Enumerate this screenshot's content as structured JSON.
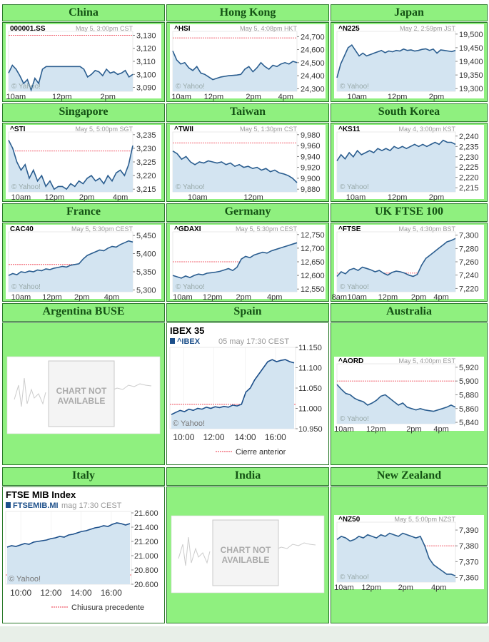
{
  "charts": [
    {
      "region": "China",
      "symbol": "000001.SS",
      "timestamp": "May 5, 3:00pm CST",
      "type": "line",
      "ylim": [
        3087,
        3133
      ],
      "yticks": [
        "3,130",
        "3,120",
        "3,110",
        "3,100",
        "3,090"
      ],
      "ytick_values": [
        3130,
        3120,
        3110,
        3100,
        3090
      ],
      "xticks": [
        "10am",
        "12pm",
        "2pm"
      ],
      "xtick_frac": [
        0.06,
        0.43,
        0.8
      ],
      "prev_close": 3130,
      "values": [
        3101,
        3107,
        3104,
        3099,
        3093,
        3096,
        3088,
        3097,
        3093,
        3104,
        3106,
        3106,
        3106,
        3106,
        3106,
        3106,
        3106,
        3106,
        3106,
        3106,
        3104,
        3098,
        3100,
        3103,
        3102,
        3099,
        3104,
        3101,
        3102,
        3100,
        3101,
        3103,
        3098,
        3100
      ],
      "break_after": 10,
      "credit": "© Yahoo!"
    },
    {
      "region": "Hong Kong",
      "symbol": "^HSI",
      "timestamp": "May 5, 4:08pm HKT",
      "type": "line",
      "ylim": [
        24280,
        24740
      ],
      "yticks": [
        "24,700",
        "24,600",
        "24,500",
        "24,400",
        "24,300"
      ],
      "ytick_values": [
        24700,
        24600,
        24500,
        24400,
        24300
      ],
      "xticks": [
        "10am",
        "12pm",
        "2pm",
        "4pm"
      ],
      "xtick_frac": [
        0.07,
        0.33,
        0.65,
        0.91
      ],
      "prev_close": 24690,
      "values": [
        24590,
        24520,
        24490,
        24500,
        24460,
        24440,
        24470,
        24420,
        24410,
        24390,
        24370,
        24380,
        24390,
        24395,
        24400,
        24402,
        24405,
        24410,
        24450,
        24470,
        24430,
        24460,
        24500,
        24470,
        24450,
        24480,
        24470,
        24490,
        24500,
        24490,
        24510,
        24500
      ],
      "break_after": 12,
      "credit": "© Yahoo!"
    },
    {
      "region": "Japan",
      "symbol": "^N225",
      "timestamp": "May 2, 2:59pm JST",
      "type": "line",
      "ylim": [
        19290,
        19510
      ],
      "yticks": [
        "19,500",
        "19,450",
        "19,400",
        "19,350",
        "19,300"
      ],
      "ytick_values": [
        19500,
        19450,
        19400,
        19350,
        19300
      ],
      "xticks": [
        "10am",
        "12pm",
        "2pm"
      ],
      "xtick_frac": [
        0.17,
        0.51,
        0.84
      ],
      "prev_close": 19300,
      "values": [
        19340,
        19390,
        19420,
        19450,
        19460,
        19440,
        19420,
        19430,
        19420,
        19425,
        19430,
        19435,
        19440,
        19432,
        19438,
        19435,
        19440,
        19438,
        19445,
        19440,
        19442,
        19438,
        19440,
        19444,
        19446,
        19440,
        19445,
        19430,
        19442,
        19440,
        19438,
        19436,
        19440
      ],
      "break_after": 8,
      "credit": "© Yahoo!"
    },
    {
      "region": "Singapore",
      "symbol": "^STI",
      "timestamp": "May 5, 5:00pm SGT",
      "type": "line",
      "ylim": [
        3214,
        3236
      ],
      "yticks": [
        "3,235",
        "3,230",
        "3,225",
        "3,220",
        "3,215"
      ],
      "ytick_values": [
        3235,
        3230,
        3225,
        3220,
        3215
      ],
      "xticks": [
        "10am",
        "12pm",
        "2pm",
        "4pm"
      ],
      "xtick_frac": [
        0.1,
        0.37,
        0.63,
        0.9
      ],
      "prev_close": 3229,
      "values": [
        3233,
        3230,
        3225,
        3222,
        3224,
        3219,
        3222,
        3218,
        3220,
        3216,
        3218,
        3215,
        3216,
        3216,
        3215,
        3217,
        3216,
        3218,
        3217,
        3219,
        3220,
        3218,
        3219,
        3217,
        3220,
        3218,
        3221,
        3222,
        3220,
        3224,
        3231
      ],
      "break_after": 12,
      "credit": "© Yahoo!"
    },
    {
      "region": "Taiwan",
      "symbol": "^TWII",
      "timestamp": "May 5, 1:30pm CST",
      "type": "line",
      "ylim": [
        9875,
        9985
      ],
      "yticks": [
        "9,980",
        "9,960",
        "9,940",
        "9,920",
        "9,900",
        "9,880"
      ],
      "ytick_values": [
        9980,
        9960,
        9940,
        9920,
        9900,
        9880
      ],
      "xticks": [
        "10am",
        "12pm"
      ],
      "xtick_frac": [
        0.2,
        0.65
      ],
      "prev_close": 9965,
      "values": [
        9950,
        9945,
        9935,
        9940,
        9930,
        9925,
        9930,
        9928,
        9932,
        9930,
        9928,
        9930,
        9925,
        9928,
        9922,
        9925,
        9920,
        9922,
        9918,
        9920,
        9915,
        9918,
        9912,
        9915,
        9910,
        9908,
        9905,
        9900,
        9892
      ],
      "break_after": null,
      "credit": "© Yahoo!"
    },
    {
      "region": "South Korea",
      "symbol": "^KS11",
      "timestamp": "May 4, 3:00pm KST",
      "type": "line",
      "ylim": [
        2213,
        2242
      ],
      "yticks": [
        "2,240",
        "2,235",
        "2,230",
        "2,225",
        "2,220",
        "2,215"
      ],
      "ytick_values": [
        2240,
        2235,
        2230,
        2225,
        2220,
        2215
      ],
      "xticks": [
        "10am",
        "12pm",
        "2pm"
      ],
      "xtick_frac": [
        0.16,
        0.51,
        0.84
      ],
      "prev_close": 2219,
      "values": [
        2228,
        2231,
        2229,
        2232,
        2230,
        2233,
        2231,
        2232,
        2233,
        2232,
        2234,
        2233,
        2234,
        2233,
        2235,
        2234,
        2235,
        2234,
        2235,
        2236,
        2235,
        2236,
        2235,
        2236,
        2237,
        2236,
        2238,
        2237,
        2237,
        2236
      ],
      "break_after": null,
      "credit": "© Yahoo!"
    },
    {
      "region": "France",
      "symbol": "CAC40",
      "timestamp": "May 5, 5:30pm CEST",
      "type": "line",
      "ylim": [
        5295,
        5460
      ],
      "yticks": [
        "5,450",
        "5,400",
        "5,350",
        "5,300"
      ],
      "ytick_values": [
        5450,
        5400,
        5350,
        5300
      ],
      "xticks": [
        "10am",
        "12pm",
        "2pm",
        "4pm"
      ],
      "xtick_frac": [
        0.1,
        0.35,
        0.59,
        0.83
      ],
      "prev_close": 5370,
      "values": [
        5340,
        5345,
        5342,
        5350,
        5348,
        5352,
        5350,
        5355,
        5353,
        5358,
        5356,
        5360,
        5362,
        5365,
        5363,
        5368,
        5370,
        5372,
        5385,
        5395,
        5400,
        5405,
        5410,
        5408,
        5415,
        5420,
        5418,
        5425,
        5430,
        5435,
        5432
      ],
      "break_after": null,
      "credit": "© Yahoo!"
    },
    {
      "region": "Germany",
      "symbol": "^GDAXI",
      "timestamp": "May 5, 5:30pm CEST",
      "type": "line",
      "ylim": [
        12540,
        12760
      ],
      "yticks": [
        "12,750",
        "12,700",
        "12,650",
        "12,600",
        "12,550"
      ],
      "ytick_values": [
        12750,
        12700,
        12650,
        12600,
        12550
      ],
      "xticks": [
        "10am",
        "12pm",
        "2pm",
        "4pm"
      ],
      "xtick_frac": [
        0.08,
        0.32,
        0.57,
        0.82
      ],
      "prev_close": 12650,
      "values": [
        12600,
        12595,
        12590,
        12598,
        12592,
        12600,
        12605,
        12602,
        12608,
        12610,
        12612,
        12615,
        12620,
        12625,
        12618,
        12630,
        12660,
        12670,
        12665,
        12675,
        12680,
        12685,
        12682,
        12690,
        12695,
        12700,
        12705,
        12710,
        12715,
        12720
      ],
      "break_after": null,
      "credit": "© Yahoo!"
    },
    {
      "region": "UK FTSE 100",
      "symbol": "^FTSE",
      "timestamp": "May 5, 4:30pm BST",
      "type": "line",
      "ylim": [
        7215,
        7305
      ],
      "yticks": [
        "7,300",
        "7,280",
        "7,260",
        "7,240",
        "7,220"
      ],
      "ytick_values": [
        7300,
        7280,
        7260,
        7240,
        7220
      ],
      "xticks": [
        "8am",
        "10am",
        "12pm",
        "2pm",
        "4pm"
      ],
      "xtick_frac": [
        0.02,
        0.17,
        0.43,
        0.69,
        0.88
      ],
      "prev_close": 7243,
      "values": [
        7238,
        7245,
        7242,
        7248,
        7250,
        7247,
        7252,
        7250,
        7248,
        7245,
        7247,
        7243,
        7240,
        7244,
        7246,
        7245,
        7243,
        7240,
        7238,
        7241,
        7255,
        7265,
        7270,
        7275,
        7280,
        7285,
        7290,
        7292,
        7295
      ],
      "break_after": null,
      "credit": "© Yahoo!"
    },
    {
      "region": "Australia",
      "symbol": "^AORD",
      "timestamp": "May 5, 4:00pm EST",
      "type": "line",
      "ylim": [
        5838,
        5925
      ],
      "yticks": [
        "5,920",
        "5,900",
        "5,880",
        "5,860",
        "5,840"
      ],
      "ytick_values": [
        5920,
        5900,
        5880,
        5860,
        5840
      ],
      "xticks": [
        "10am",
        "12pm",
        "2pm",
        "4pm"
      ],
      "xtick_frac": [
        0.06,
        0.33,
        0.65,
        0.88
      ],
      "prev_close": 5900,
      "values": [
        5895,
        5888,
        5882,
        5880,
        5875,
        5872,
        5870,
        5865,
        5868,
        5872,
        5878,
        5880,
        5875,
        5870,
        5865,
        5868,
        5862,
        5860,
        5858,
        5860,
        5858,
        5857,
        5856,
        5858,
        5860,
        5862,
        5865,
        5862
      ],
      "break_after": null,
      "credit": "© Yahoo!"
    },
    {
      "region": "New Zealand",
      "symbol": "^NZ50",
      "timestamp": "May 5, 5:00pm NZST",
      "type": "line",
      "ylim": [
        7357,
        7395
      ],
      "yticks": [
        "7,390",
        "7,380",
        "7,370",
        "7,360"
      ],
      "ytick_values": [
        7390,
        7380,
        7370,
        7360
      ],
      "xticks": [
        "10am",
        "12pm",
        "2pm",
        "4pm"
      ],
      "xtick_frac": [
        0.06,
        0.29,
        0.58,
        0.86
      ],
      "prev_close": 7380,
      "values": [
        7384,
        7386,
        7385,
        7383,
        7384,
        7386,
        7385,
        7387,
        7386,
        7385,
        7387,
        7386,
        7388,
        7387,
        7386,
        7388,
        7387,
        7386,
        7385,
        7386,
        7380,
        7372,
        7368,
        7366,
        7364,
        7362,
        7362,
        7361
      ],
      "break_after": null,
      "credit": "© Yahoo!"
    }
  ],
  "big_charts": [
    {
      "region": "Spain",
      "title": "IBEX 35",
      "symbol": "^IBEX",
      "timestamp": "05 may 17:30 CEST",
      "type": "line",
      "ylim": [
        10950,
        11150
      ],
      "yticks": [
        "11.150",
        "11.100",
        "11.050",
        "11.000",
        "10.950"
      ],
      "ytick_values": [
        11150,
        11100,
        11050,
        11000,
        10950
      ],
      "xticks": [
        "10:00",
        "12:00",
        "14:00",
        "16:00"
      ],
      "xtick_frac": [
        0.11,
        0.35,
        0.6,
        0.84
      ],
      "prev_close": 11010,
      "values": [
        10985,
        10990,
        10995,
        10992,
        10998,
        10995,
        11000,
        10998,
        11003,
        11000,
        11004,
        11002,
        11005,
        11003,
        11008,
        11006,
        11010,
        11040,
        11050,
        11070,
        11085,
        11100,
        11115,
        11120,
        11115,
        11118,
        11120,
        11115,
        11112
      ],
      "legend": "Cierre anterior",
      "credit": "© Yahoo!"
    },
    {
      "region": "Italy",
      "title": "FTSE MIB Index",
      "symbol": "FTSEMIB.MI",
      "timestamp": "mag 17:30 CEST",
      "type": "line",
      "ylim": [
        20600,
        21620
      ],
      "yticks": [
        "21.600",
        "21.400",
        "21.200",
        "21.000",
        "20.800",
        "20.600"
      ],
      "ytick_values": [
        21600,
        21400,
        21200,
        21000,
        20800,
        20600
      ],
      "xticks": [
        "10:00",
        "12:00",
        "14:00",
        "16:00"
      ],
      "xtick_frac": [
        0.12,
        0.36,
        0.6,
        0.84
      ],
      "prev_close": 20730,
      "values": [
        21120,
        21140,
        21130,
        21150,
        21170,
        21160,
        21190,
        21200,
        21210,
        21220,
        21240,
        21250,
        21270,
        21260,
        21290,
        21300,
        21320,
        21340,
        21350,
        21370,
        21390,
        21400,
        21420,
        21410,
        21440,
        21460,
        21450,
        21430,
        21450
      ],
      "legend": "Chiusura precedente",
      "credit": "© Yahoo!"
    }
  ],
  "unavailable": [
    {
      "region": "Argentina BUSE",
      "line1": "CHART NOT",
      "line2": "AVAILABLE"
    },
    {
      "region": "India",
      "line1": "CHART NOT",
      "line2": "AVAILABLE"
    }
  ]
}
